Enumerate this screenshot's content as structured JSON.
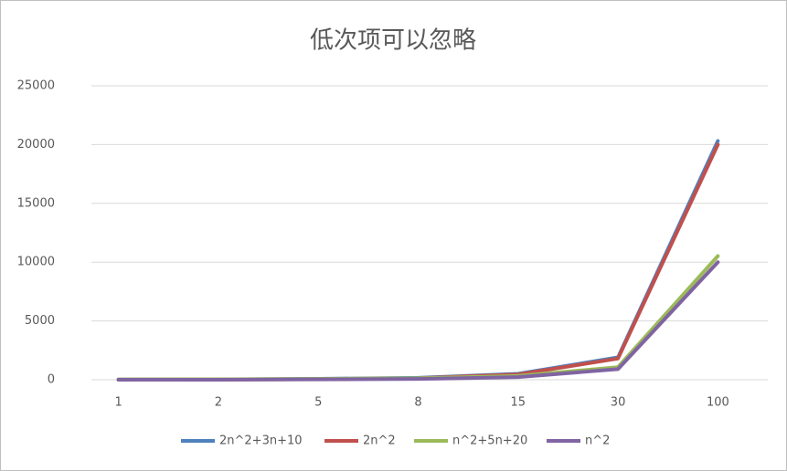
{
  "chart_data": {
    "type": "line",
    "title": "低次项可以忽略",
    "categories": [
      "1",
      "2",
      "5",
      "8",
      "15",
      "30",
      "100"
    ],
    "series": [
      {
        "name": "2n^2+3n+10",
        "color": "#4f81bd",
        "values": [
          15,
          24,
          75,
          162,
          505,
          1900,
          20310
        ]
      },
      {
        "name": "2n^2",
        "color": "#c0504d",
        "values": [
          2,
          8,
          50,
          128,
          450,
          1800,
          20000
        ]
      },
      {
        "name": "n^2+5n+20",
        "color": "#9bbb59",
        "values": [
          26,
          34,
          70,
          124,
          320,
          1070,
          10520
        ]
      },
      {
        "name": "n^2",
        "color": "#8064a2",
        "values": [
          1,
          4,
          25,
          64,
          225,
          900,
          10000
        ]
      }
    ],
    "ylim": [
      0,
      25000
    ],
    "yticks": [
      0,
      5000,
      10000,
      15000,
      20000,
      25000
    ],
    "grid": true,
    "legend": "bottom"
  }
}
